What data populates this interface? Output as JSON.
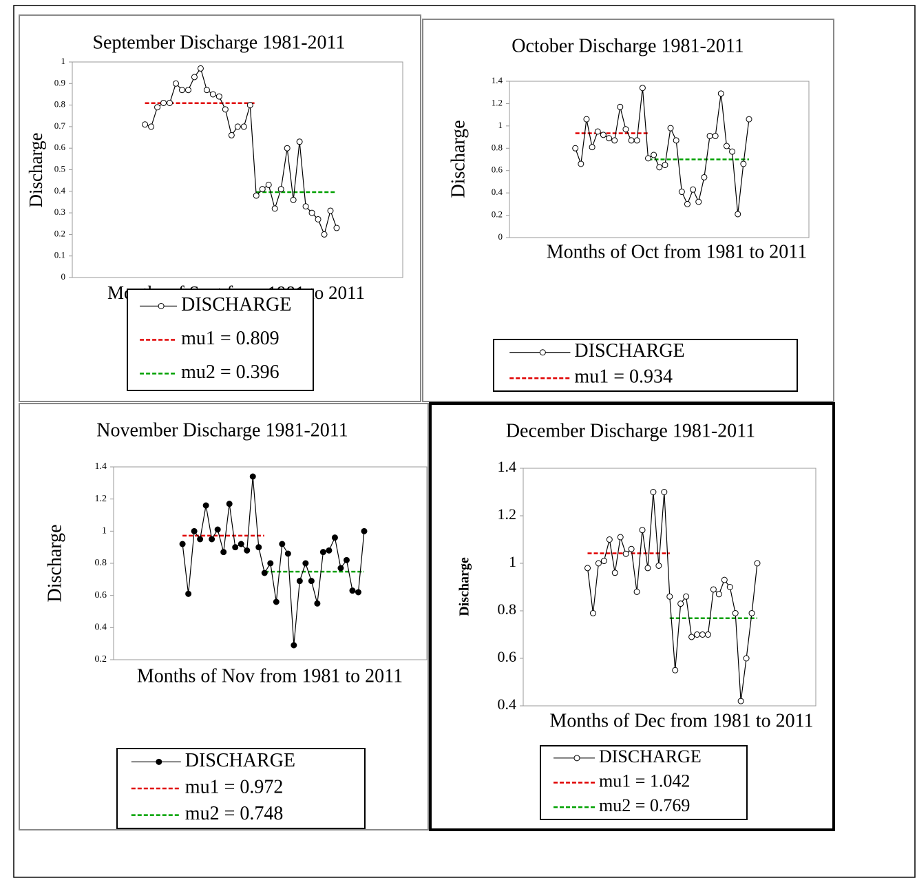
{
  "chart_data": [
    {
      "type": "line",
      "title": "September Discharge 1981-2011",
      "x_label": "Months of Sept from 1981  to 2011",
      "y_label": "Discharge",
      "ylim": [
        0,
        1
      ],
      "yticks": [
        0,
        0.1,
        0.2,
        0.3,
        0.4,
        0.5,
        0.6,
        0.7,
        0.8,
        0.9,
        1
      ],
      "series": [
        {
          "name": "DISCHARGE",
          "color": "#000000",
          "marker": "open",
          "values": [
            0.71,
            0.7,
            0.79,
            0.81,
            0.81,
            0.9,
            0.87,
            0.87,
            0.93,
            0.97,
            0.87,
            0.85,
            0.84,
            0.78,
            0.66,
            0.7,
            0.7,
            0.8,
            0.38,
            0.41,
            0.43,
            0.32,
            0.41,
            0.6,
            0.36,
            0.63,
            0.33,
            0.3,
            0.27,
            0.2,
            0.31,
            0.23
          ]
        }
      ],
      "means": [
        {
          "label": "mu1 = 0.809",
          "value": 0.809,
          "color": "#e00000"
        },
        {
          "label": "mu2 = 0.396",
          "value": 0.396,
          "color": "#00a000"
        }
      ]
    },
    {
      "type": "line",
      "title": "October Discharge 1981-2011",
      "x_label": "Months of Oct from 1981 to 2011",
      "y_label": "Discharge",
      "ylim": [
        0,
        1.4
      ],
      "yticks": [
        0,
        0.2,
        0.4,
        0.6,
        0.8,
        1,
        1.2,
        1.4
      ],
      "series": [
        {
          "name": "DISCHARGE",
          "color": "#000000",
          "marker": "open",
          "values": [
            0.8,
            0.66,
            1.06,
            0.81,
            0.95,
            0.92,
            0.89,
            0.87,
            1.17,
            0.97,
            0.87,
            0.87,
            1.34,
            0.71,
            0.74,
            0.63,
            0.65,
            0.98,
            0.87,
            0.41,
            0.3,
            0.43,
            0.32,
            0.54,
            0.91,
            0.91,
            1.29,
            0.82,
            0.77,
            0.21,
            0.66,
            1.06
          ]
        }
      ],
      "means": [
        {
          "label": "mu1 = 0.934",
          "value": 0.934,
          "color": "#e00000"
        },
        {
          "value": 0.7,
          "color": "#00a000"
        }
      ]
    },
    {
      "type": "line",
      "title": "November Discharge 1981-2011",
      "x_label": "Months of Nov from 1981 to 2011",
      "y_label": "Discharge",
      "ylim": [
        0.2,
        1.4
      ],
      "yticks": [
        0.2,
        0.4,
        0.6,
        0.8,
        1,
        1.2,
        1.4
      ],
      "series": [
        {
          "name": "DISCHARGE",
          "color": "#000000",
          "marker": "filled",
          "values": [
            0.92,
            0.61,
            1.0,
            0.95,
            1.16,
            0.95,
            1.01,
            0.87,
            1.17,
            0.9,
            0.92,
            0.88,
            1.34,
            0.9,
            0.74,
            0.8,
            0.56,
            0.92,
            0.86,
            0.29,
            0.69,
            0.8,
            0.69,
            0.55,
            0.87,
            0.88,
            0.96,
            0.77,
            0.82,
            0.63,
            0.62,
            1.0
          ]
        }
      ],
      "means": [
        {
          "label": "mu1 = 0.972",
          "value": 0.972,
          "color": "#e00000"
        },
        {
          "label": "mu2 = 0.748",
          "value": 0.748,
          "color": "#00a000"
        }
      ]
    },
    {
      "type": "line",
      "title": "December Discharge 1981-2011",
      "x_label": "Months of Dec from 1981 to 2011",
      "y_label": "Discharge",
      "ylim": [
        0.4,
        1.4
      ],
      "yticks": [
        0.4,
        0.6,
        0.8,
        1,
        1.2,
        1.4
      ],
      "series": [
        {
          "name": "DISCHARGE",
          "color": "#000000",
          "marker": "open",
          "values": [
            0.98,
            0.79,
            1.0,
            1.01,
            1.1,
            0.96,
            1.11,
            1.04,
            1.06,
            0.88,
            1.14,
            0.98,
            1.3,
            0.99,
            1.3,
            0.86,
            0.55,
            0.83,
            0.86,
            0.69,
            0.7,
            0.7,
            0.7,
            0.89,
            0.87,
            0.93,
            0.9,
            0.79,
            0.42,
            0.6,
            0.79,
            1.0
          ]
        }
      ],
      "means": [
        {
          "label": "mu1 = 1.042",
          "value": 1.042,
          "color": "#e00000"
        },
        {
          "label": "mu2 = 0.769",
          "value": 0.769,
          "color": "#00a000"
        }
      ]
    }
  ]
}
